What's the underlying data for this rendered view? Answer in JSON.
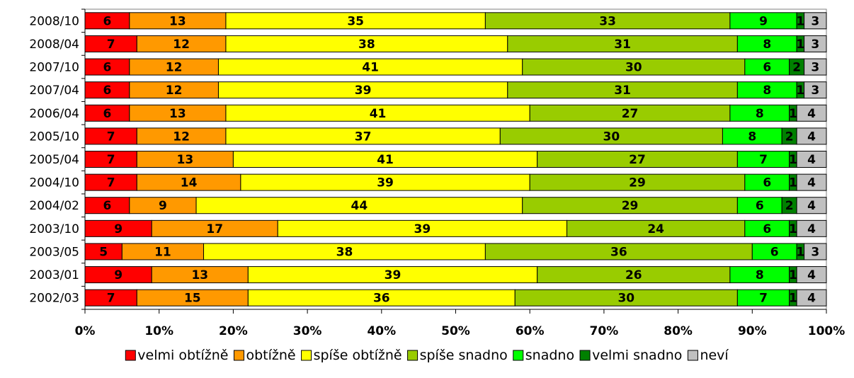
{
  "chart_data": {
    "type": "bar",
    "orientation": "horizontal",
    "stacked": "percent",
    "categories": [
      "2008/10",
      "2008/04",
      "2007/10",
      "2007/04",
      "2006/04",
      "2005/10",
      "2005/04",
      "2004/10",
      "2004/02",
      "2003/10",
      "2003/05",
      "2003/01",
      "2002/03"
    ],
    "series": [
      {
        "name": "velmi obtížně",
        "color": "#ff0000",
        "values": [
          6,
          7,
          6,
          6,
          6,
          7,
          7,
          7,
          6,
          9,
          5,
          9,
          7
        ]
      },
      {
        "name": "obtížně",
        "color": "#ff9900",
        "values": [
          13,
          12,
          12,
          12,
          13,
          12,
          13,
          14,
          9,
          17,
          11,
          13,
          15
        ]
      },
      {
        "name": "spíše obtížně",
        "color": "#ffff00",
        "values": [
          35,
          38,
          41,
          39,
          41,
          37,
          41,
          39,
          44,
          39,
          38,
          39,
          36
        ]
      },
      {
        "name": "spíše snadno",
        "color": "#99cc00",
        "values": [
          33,
          31,
          30,
          31,
          27,
          30,
          27,
          29,
          29,
          24,
          36,
          26,
          30
        ]
      },
      {
        "name": "snadno",
        "color": "#00ff00",
        "values": [
          9,
          8,
          6,
          8,
          8,
          8,
          7,
          6,
          6,
          6,
          6,
          8,
          7
        ]
      },
      {
        "name": "velmi snadno",
        "color": "#008000",
        "values": [
          1,
          1,
          2,
          1,
          1,
          2,
          1,
          1,
          2,
          1,
          1,
          1,
          1
        ]
      },
      {
        "name": "neví",
        "color": "#c0c0c0",
        "values": [
          3,
          3,
          3,
          3,
          4,
          4,
          4,
          4,
          4,
          4,
          3,
          4,
          4
        ]
      }
    ],
    "xlim": [
      0,
      100
    ],
    "xticks": [
      "0%",
      "10%",
      "20%",
      "30%",
      "40%",
      "50%",
      "60%",
      "70%",
      "80%",
      "90%",
      "100%"
    ],
    "legend_position": "bottom",
    "grid": false
  }
}
